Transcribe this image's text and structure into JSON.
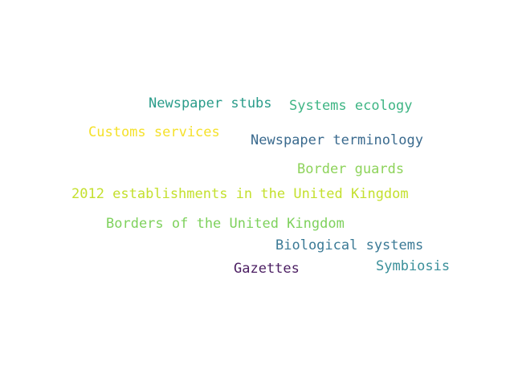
{
  "words": [
    {
      "text": "Newspaper stubs",
      "color": "#2a9c8a"
    },
    {
      "text": "Systems ecology",
      "color": "#3eb584"
    },
    {
      "text": "Customs services",
      "color": "#f5e12a"
    },
    {
      "text": "Newspaper terminology",
      "color": "#3a6a8e"
    },
    {
      "text": "Border guards",
      "color": "#8dd35a"
    },
    {
      "text": "2012 establishments in the United Kingdom",
      "color": "#c4e02e"
    },
    {
      "text": "Borders of the United Kingdom",
      "color": "#7ed15c"
    },
    {
      "text": "Biological systems",
      "color": "#3b7a96"
    },
    {
      "text": "Gazettes",
      "color": "#4b1e62"
    },
    {
      "text": "Symbiosis",
      "color": "#3a8f9a"
    }
  ]
}
